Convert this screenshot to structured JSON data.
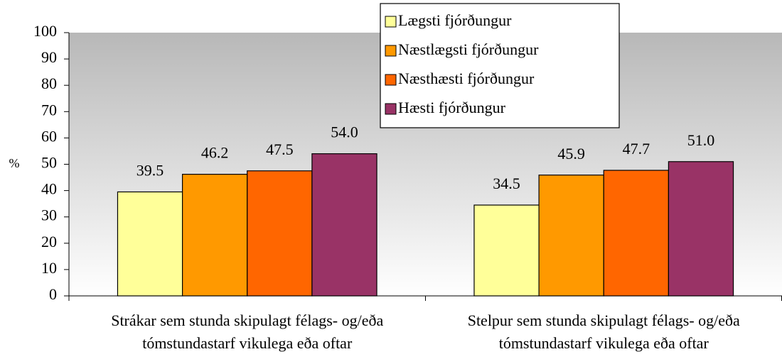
{
  "chart_data": {
    "type": "bar",
    "categories": [
      "Strákar sem stunda skipulagt félags- og/eða tómstundastarf vikulega eða oftar",
      "Stelpur sem stunda skipulagt félags- og/eða tómstundastarf vikulega eða oftar"
    ],
    "y_label": "%",
    "series": [
      {
        "name": "Lægsti fjórðungur",
        "color": "#FFFF99",
        "values": [
          39.5,
          34.5
        ],
        "value_labels": [
          "39.5",
          "34.5"
        ]
      },
      {
        "name": "Næstlægsti fjórðungur",
        "color": "#FF9900",
        "values": [
          46.2,
          45.9
        ],
        "value_labels": [
          "46.2",
          "45.9"
        ]
      },
      {
        "name": "Næsthæsti fjórðungur",
        "color": "#FF6600",
        "values": [
          47.5,
          47.7
        ],
        "value_labels": [
          "47.5",
          "47.7"
        ]
      },
      {
        "name": "Hæsti fjórðungur",
        "color": "#993366",
        "values": [
          54.0,
          51.0
        ],
        "value_labels": [
          "54.0",
          "51.0"
        ]
      }
    ],
    "ylim": [
      0,
      100
    ],
    "yticks": [
      0,
      10,
      20,
      30,
      40,
      50,
      60,
      70,
      80,
      90,
      100
    ],
    "legend": "top-right"
  }
}
